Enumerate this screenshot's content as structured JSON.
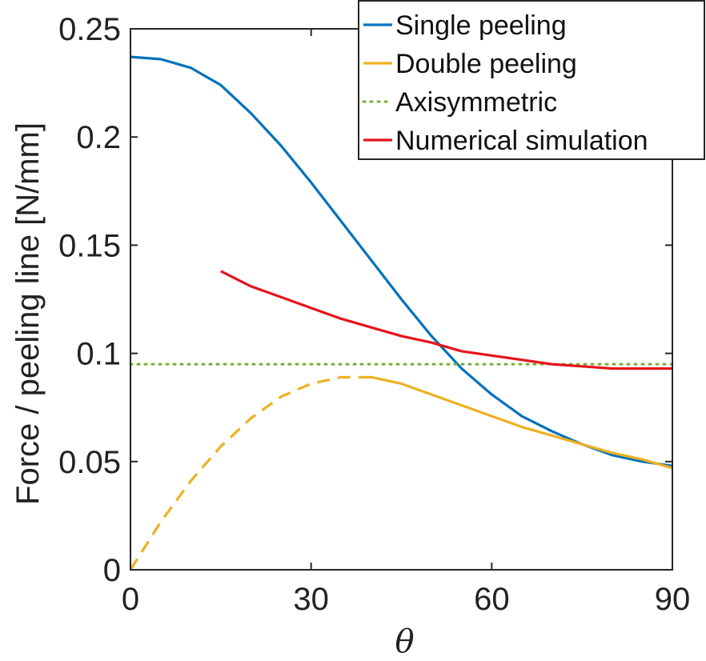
{
  "chart_data": {
    "type": "line",
    "xlabel": "θ",
    "ylabel": "Force / peeling line [N/mm]",
    "xlim": [
      0,
      90
    ],
    "ylim": [
      0,
      0.25
    ],
    "xticks": [
      0,
      30,
      60,
      90
    ],
    "xtick_labels": [
      "0",
      "30",
      "60",
      "90"
    ],
    "yticks": [
      0,
      0.05,
      0.1,
      0.15,
      0.2,
      0.25
    ],
    "ytick_labels": [
      "0",
      "0.05",
      "0.1",
      "0.15",
      "0.2",
      "0.25"
    ],
    "grid": false,
    "legend_position": "top-right",
    "series": [
      {
        "name": "Single peeling",
        "color": "#0072BD",
        "dash": "solid",
        "x": [
          0,
          5,
          10,
          15,
          20,
          25,
          30,
          35,
          40,
          45,
          50,
          55,
          60,
          65,
          70,
          75,
          80,
          85,
          90
        ],
        "y": [
          0.237,
          0.236,
          0.232,
          0.224,
          0.211,
          0.196,
          0.179,
          0.161,
          0.143,
          0.125,
          0.108,
          0.093,
          0.081,
          0.071,
          0.064,
          0.058,
          0.053,
          0.05,
          0.048
        ]
      },
      {
        "name": "Double peeling",
        "color": "#EDB120",
        "dash": "solid",
        "x": [
          38,
          40,
          45,
          50,
          55,
          60,
          65,
          70,
          75,
          80,
          85,
          90
        ],
        "y": [
          0.089,
          0.089,
          0.086,
          0.081,
          0.076,
          0.071,
          0.066,
          0.062,
          0.058,
          0.054,
          0.051,
          0.047
        ]
      },
      {
        "name": "",
        "color": "#EDB120",
        "dash": "dashed",
        "x": [
          0,
          5,
          10,
          15,
          20,
          25,
          30,
          35,
          38
        ],
        "y": [
          0,
          0.022,
          0.041,
          0.057,
          0.07,
          0.08,
          0.086,
          0.089,
          0.089
        ]
      },
      {
        "name": "Axisymmetric",
        "color": "#77AC30",
        "dash": "dotted",
        "x": [
          0,
          90
        ],
        "y": [
          0.095,
          0.095
        ]
      },
      {
        "name": "Numerical simulation",
        "color": "#E5141B",
        "dash": "solid",
        "x": [
          15,
          20,
          25,
          30,
          35,
          40,
          45,
          50,
          55,
          60,
          65,
          70,
          75,
          80,
          85,
          90
        ],
        "y": [
          0.138,
          0.131,
          0.126,
          0.121,
          0.116,
          0.112,
          0.108,
          0.105,
          0.101,
          0.099,
          0.097,
          0.095,
          0.094,
          0.093,
          0.093,
          0.093
        ]
      }
    ]
  }
}
